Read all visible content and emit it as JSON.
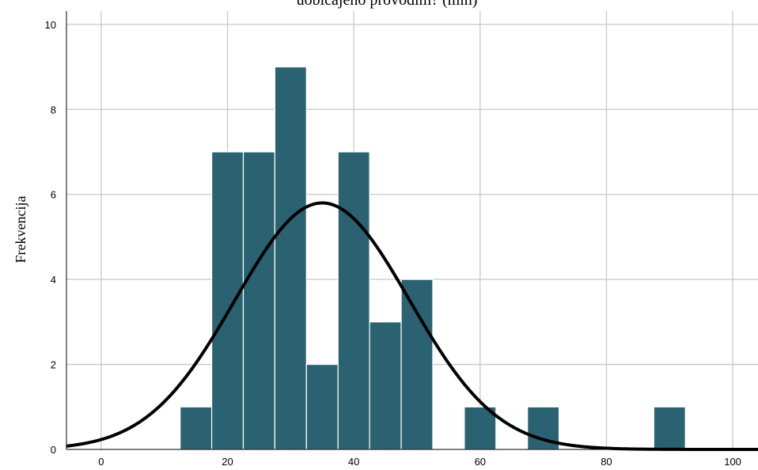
{
  "chart_data": {
    "type": "bar",
    "title": "uobičajeno provodim? (min)",
    "xlabel": "",
    "ylabel": "Frekvencija",
    "xlim": [
      -5.5,
      104
    ],
    "ylim": [
      0,
      10.5
    ],
    "x_ticks": [
      0,
      20,
      40,
      60,
      80,
      100
    ],
    "y_ticks": [
      0,
      2,
      4,
      6,
      8,
      10
    ],
    "bin_width": 5,
    "bins": [
      {
        "start": 12.5,
        "end": 17.5,
        "count": 1
      },
      {
        "start": 17.5,
        "end": 22.5,
        "count": 7
      },
      {
        "start": 22.5,
        "end": 27.5,
        "count": 7
      },
      {
        "start": 27.5,
        "end": 32.5,
        "count": 9
      },
      {
        "start": 32.5,
        "end": 37.5,
        "count": 2
      },
      {
        "start": 37.5,
        "end": 42.5,
        "count": 7
      },
      {
        "start": 42.5,
        "end": 47.5,
        "count": 3
      },
      {
        "start": 47.5,
        "end": 52.5,
        "count": 4
      },
      {
        "start": 57.5,
        "end": 62.5,
        "count": 1
      },
      {
        "start": 67.5,
        "end": 72.5,
        "count": 1
      },
      {
        "start": 87.5,
        "end": 92.5,
        "count": 1
      }
    ],
    "normal_curve": {
      "mean": 35,
      "peak": 5.8,
      "sd": 13.8
    },
    "grid": true,
    "colors": {
      "bar": "#2b6271",
      "curve": "#000000",
      "grid": "#c8c8c8"
    }
  }
}
